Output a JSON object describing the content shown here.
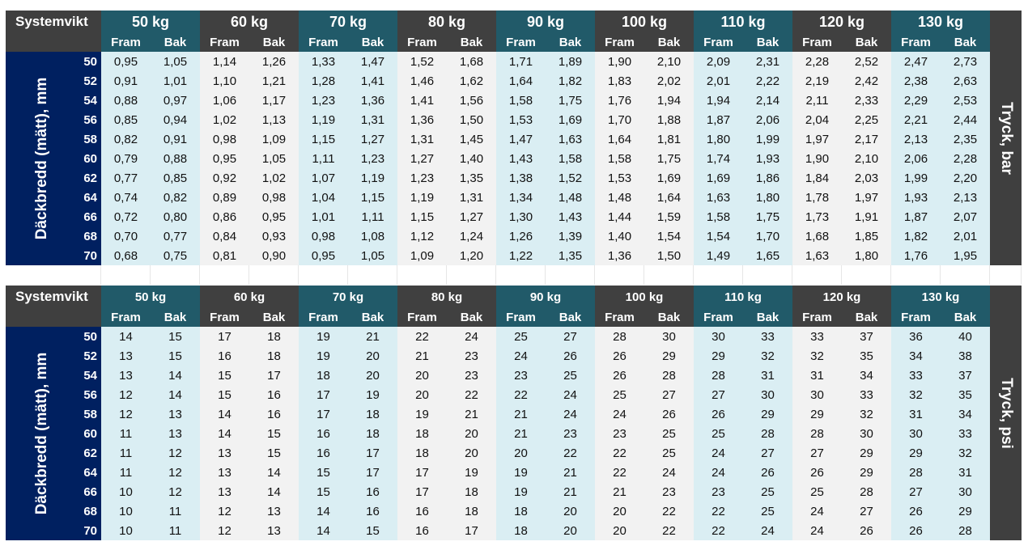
{
  "tables": [
    {
      "id": "bar",
      "system_label": "Systemvikt",
      "side_label": "Däckbredd (mätt), mm",
      "right_label": "Tryck, bar",
      "weights": [
        "50 kg",
        "60 kg",
        "70 kg",
        "80 kg",
        "90 kg",
        "100 kg",
        "110 kg",
        "120 kg",
        "130 kg"
      ],
      "front_label": "Fram",
      "rear_label": "Bak",
      "rows": [
        {
          "width": "50",
          "values": [
            "0,95",
            "1,05",
            "1,14",
            "1,26",
            "1,33",
            "1,47",
            "1,52",
            "1,68",
            "1,71",
            "1,89",
            "1,90",
            "2,10",
            "2,09",
            "2,31",
            "2,28",
            "2,52",
            "2,47",
            "2,73"
          ]
        },
        {
          "width": "52",
          "values": [
            "0,91",
            "1,01",
            "1,10",
            "1,21",
            "1,28",
            "1,41",
            "1,46",
            "1,62",
            "1,64",
            "1,82",
            "1,83",
            "2,02",
            "2,01",
            "2,22",
            "2,19",
            "2,42",
            "2,38",
            "2,63"
          ]
        },
        {
          "width": "54",
          "values": [
            "0,88",
            "0,97",
            "1,06",
            "1,17",
            "1,23",
            "1,36",
            "1,41",
            "1,56",
            "1,58",
            "1,75",
            "1,76",
            "1,94",
            "1,94",
            "2,14",
            "2,11",
            "2,33",
            "2,29",
            "2,53"
          ]
        },
        {
          "width": "56",
          "values": [
            "0,85",
            "0,94",
            "1,02",
            "1,13",
            "1,19",
            "1,31",
            "1,36",
            "1,50",
            "1,53",
            "1,69",
            "1,70",
            "1,88",
            "1,87",
            "2,06",
            "2,04",
            "2,25",
            "2,21",
            "2,44"
          ]
        },
        {
          "width": "58",
          "values": [
            "0,82",
            "0,91",
            "0,98",
            "1,09",
            "1,15",
            "1,27",
            "1,31",
            "1,45",
            "1,47",
            "1,63",
            "1,64",
            "1,81",
            "1,80",
            "1,99",
            "1,97",
            "2,17",
            "2,13",
            "2,35"
          ]
        },
        {
          "width": "60",
          "values": [
            "0,79",
            "0,88",
            "0,95",
            "1,05",
            "1,11",
            "1,23",
            "1,27",
            "1,40",
            "1,43",
            "1,58",
            "1,58",
            "1,75",
            "1,74",
            "1,93",
            "1,90",
            "2,10",
            "2,06",
            "2,28"
          ]
        },
        {
          "width": "62",
          "values": [
            "0,77",
            "0,85",
            "0,92",
            "1,02",
            "1,07",
            "1,19",
            "1,23",
            "1,35",
            "1,38",
            "1,52",
            "1,53",
            "1,69",
            "1,69",
            "1,86",
            "1,84",
            "2,03",
            "1,99",
            "2,20"
          ]
        },
        {
          "width": "64",
          "values": [
            "0,74",
            "0,82",
            "0,89",
            "0,98",
            "1,04",
            "1,15",
            "1,19",
            "1,31",
            "1,34",
            "1,48",
            "1,48",
            "1,64",
            "1,63",
            "1,80",
            "1,78",
            "1,97",
            "1,93",
            "2,13"
          ]
        },
        {
          "width": "66",
          "values": [
            "0,72",
            "0,80",
            "0,86",
            "0,95",
            "1,01",
            "1,11",
            "1,15",
            "1,27",
            "1,30",
            "1,43",
            "1,44",
            "1,59",
            "1,58",
            "1,75",
            "1,73",
            "1,91",
            "1,87",
            "2,07"
          ]
        },
        {
          "width": "68",
          "values": [
            "0,70",
            "0,77",
            "0,84",
            "0,93",
            "0,98",
            "1,08",
            "1,12",
            "1,24",
            "1,26",
            "1,39",
            "1,40",
            "1,54",
            "1,54",
            "1,70",
            "1,68",
            "1,85",
            "1,82",
            "2,01"
          ]
        },
        {
          "width": "70",
          "values": [
            "0,68",
            "0,75",
            "0,81",
            "0,90",
            "0,95",
            "1,05",
            "1,09",
            "1,20",
            "1,22",
            "1,35",
            "1,36",
            "1,50",
            "1,49",
            "1,65",
            "1,63",
            "1,80",
            "1,76",
            "1,95"
          ]
        }
      ]
    },
    {
      "id": "psi",
      "system_label": "Systemvikt",
      "side_label": "Däckbredd (mätt), mm",
      "right_label": "Tryck, psi",
      "weights": [
        "50 kg",
        "60 kg",
        "70 kg",
        "80 kg",
        "90 kg",
        "100 kg",
        "110 kg",
        "120 kg",
        "130 kg"
      ],
      "front_label": "Fram",
      "rear_label": "Bak",
      "rows": [
        {
          "width": "50",
          "values": [
            "14",
            "15",
            "17",
            "18",
            "19",
            "21",
            "22",
            "24",
            "25",
            "27",
            "28",
            "30",
            "30",
            "33",
            "33",
            "37",
            "36",
            "40"
          ]
        },
        {
          "width": "52",
          "values": [
            "13",
            "15",
            "16",
            "18",
            "19",
            "20",
            "21",
            "23",
            "24",
            "26",
            "26",
            "29",
            "29",
            "32",
            "32",
            "35",
            "34",
            "38"
          ]
        },
        {
          "width": "54",
          "values": [
            "13",
            "14",
            "15",
            "17",
            "18",
            "20",
            "20",
            "23",
            "23",
            "25",
            "26",
            "28",
            "28",
            "31",
            "31",
            "34",
            "33",
            "37"
          ]
        },
        {
          "width": "56",
          "values": [
            "12",
            "14",
            "15",
            "16",
            "17",
            "19",
            "20",
            "22",
            "22",
            "24",
            "25",
            "27",
            "27",
            "30",
            "30",
            "33",
            "32",
            "35"
          ]
        },
        {
          "width": "58",
          "values": [
            "12",
            "13",
            "14",
            "16",
            "17",
            "18",
            "19",
            "21",
            "21",
            "24",
            "24",
            "26",
            "26",
            "29",
            "29",
            "32",
            "31",
            "34"
          ]
        },
        {
          "width": "60",
          "values": [
            "11",
            "13",
            "14",
            "15",
            "16",
            "18",
            "18",
            "20",
            "21",
            "23",
            "23",
            "25",
            "25",
            "28",
            "28",
            "30",
            "30",
            "33"
          ]
        },
        {
          "width": "62",
          "values": [
            "11",
            "12",
            "13",
            "15",
            "16",
            "17",
            "18",
            "20",
            "20",
            "22",
            "22",
            "25",
            "24",
            "27",
            "27",
            "29",
            "29",
            "32"
          ]
        },
        {
          "width": "64",
          "values": [
            "11",
            "12",
            "13",
            "14",
            "15",
            "17",
            "17",
            "19",
            "19",
            "21",
            "22",
            "24",
            "24",
            "26",
            "26",
            "29",
            "28",
            "31"
          ]
        },
        {
          "width": "66",
          "values": [
            "10",
            "12",
            "13",
            "14",
            "15",
            "16",
            "17",
            "18",
            "19",
            "21",
            "21",
            "23",
            "23",
            "25",
            "25",
            "28",
            "27",
            "30"
          ]
        },
        {
          "width": "68",
          "values": [
            "10",
            "11",
            "12",
            "13",
            "14",
            "16",
            "16",
            "18",
            "18",
            "20",
            "20",
            "22",
            "22",
            "25",
            "24",
            "27",
            "26",
            "29"
          ]
        },
        {
          "width": "70",
          "values": [
            "10",
            "11",
            "12",
            "13",
            "14",
            "15",
            "16",
            "17",
            "18",
            "20",
            "20",
            "22",
            "22",
            "24",
            "24",
            "26",
            "26",
            "28"
          ]
        }
      ]
    }
  ]
}
